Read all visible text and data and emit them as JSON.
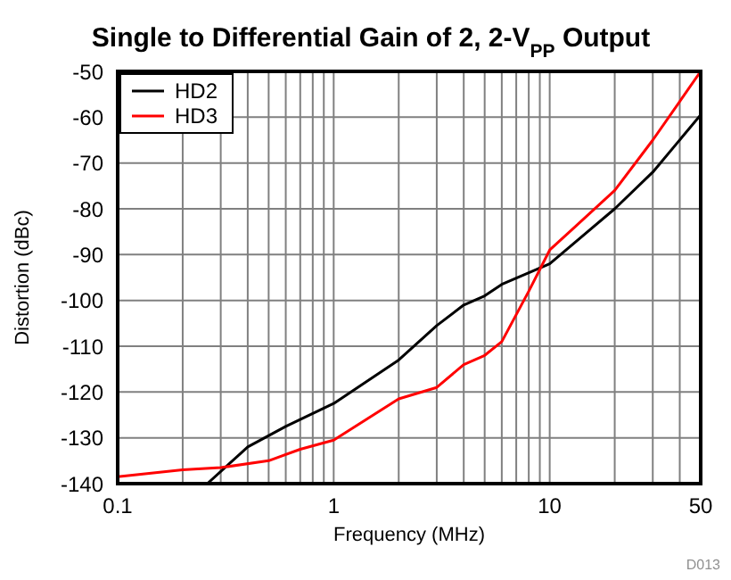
{
  "chart_data": {
    "type": "line",
    "title": "Single to Differential Gain of 2, 2-V$_{PP}$ Output",
    "xlabel": "Frequency (MHz)",
    "ylabel": "Distortion (dBc)",
    "log": "x",
    "grid": true,
    "legend": "top left",
    "marker": "none",
    "line_style": "solid",
    "annotations": [
      "D013"
    ],
    "xlim": [
      0.1,
      50
    ],
    "xticks": [
      0.1,
      {
        "value": 0.2,
        "label": null
      },
      {
        "value": 0.3,
        "label": null
      },
      {
        "value": 0.4,
        "label": null
      },
      {
        "value": 0.5,
        "label": null
      },
      {
        "value": 0.6,
        "label": null
      },
      {
        "value": 0.7,
        "label": null
      },
      {
        "value": 0.8,
        "label": null
      },
      {
        "value": 0.9,
        "label": null
      },
      1,
      {
        "value": 2,
        "label": null
      },
      {
        "value": 3,
        "label": null
      },
      {
        "value": 4,
        "label": null
      },
      {
        "value": 5,
        "label": null
      },
      {
        "value": 6,
        "label": null
      },
      {
        "value": 7,
        "label": null
      },
      {
        "value": 8,
        "label": null
      },
      {
        "value": 9,
        "label": null
      },
      10,
      {
        "value": 20,
        "label": null
      },
      {
        "value": 30,
        "label": null
      },
      {
        "value": 40,
        "label": null
      },
      50
    ],
    "ylim": [
      -140,
      -50
    ],
    "yticks": [
      -140,
      -130,
      -120,
      -110,
      -100,
      -90,
      -80,
      -70,
      -60,
      -50
    ],
    "series": [
      {
        "name": "HD2",
        "color": "#000000",
        "x": [
          0.26,
          0.4,
          0.6,
          1,
          2,
          3,
          4,
          5,
          6,
          10,
          20,
          30,
          50
        ],
        "values": [
          -140,
          -132,
          -127.5,
          -122.5,
          -113,
          -105.5,
          -101,
          -99,
          -96.5,
          -92,
          -80,
          -72,
          -59.5
        ]
      },
      {
        "name": "HD3",
        "color": "#ff0000",
        "x": [
          0.1,
          0.2,
          0.3,
          0.5,
          0.7,
          1,
          2,
          3,
          4,
          5,
          6,
          8,
          10,
          20,
          30,
          50
        ],
        "values": [
          -138.5,
          -137,
          -136.5,
          -135,
          -132.5,
          -130.5,
          -121.5,
          -119,
          -114,
          -112,
          -109,
          -98,
          -89,
          -76,
          -65,
          -50
        ]
      }
    ]
  }
}
